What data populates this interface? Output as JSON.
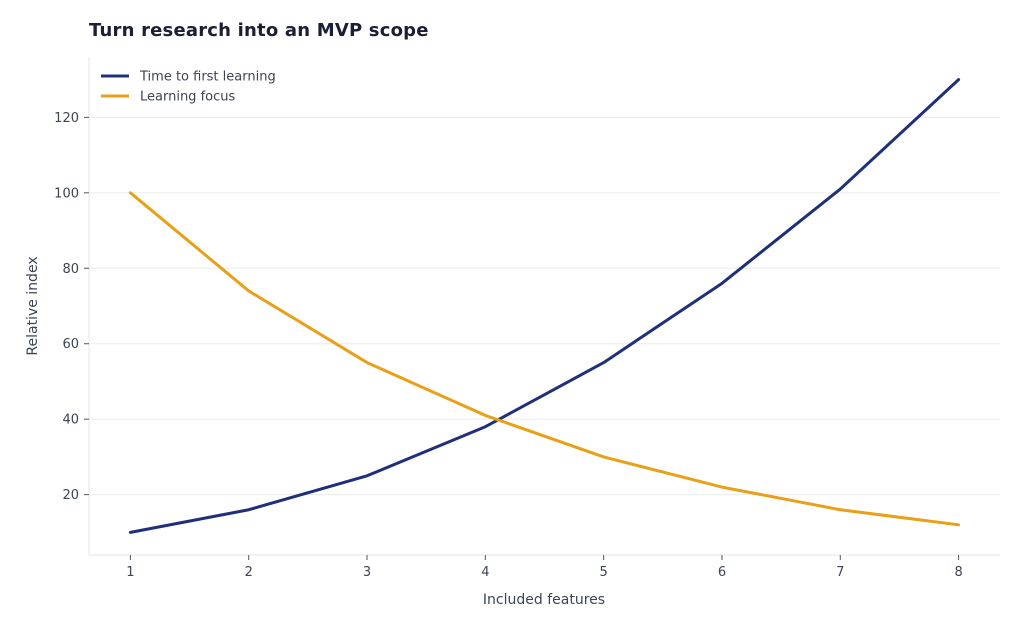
{
  "chart_data": {
    "type": "line",
    "title": "Turn research into an MVP scope",
    "xlabel": "Included features",
    "ylabel": "Relative index",
    "x": [
      1,
      2,
      3,
      4,
      5,
      6,
      7,
      8
    ],
    "xlim": [
      0.65,
      8.35
    ],
    "ylim": [
      4,
      136
    ],
    "xticks": [
      1,
      2,
      3,
      4,
      5,
      6,
      7,
      8
    ],
    "yticks": [
      20,
      40,
      60,
      80,
      100,
      120
    ],
    "grid": "horizontal",
    "legend_position": "top-left",
    "series": [
      {
        "name": "Time to first learning",
        "color": "#1f2f7a",
        "values": [
          10,
          16,
          25,
          38,
          55,
          76,
          101,
          130
        ]
      },
      {
        "name": "Learning focus",
        "color": "#e8a019",
        "values": [
          100,
          74,
          55,
          41,
          30,
          22,
          16,
          12
        ]
      }
    ]
  }
}
